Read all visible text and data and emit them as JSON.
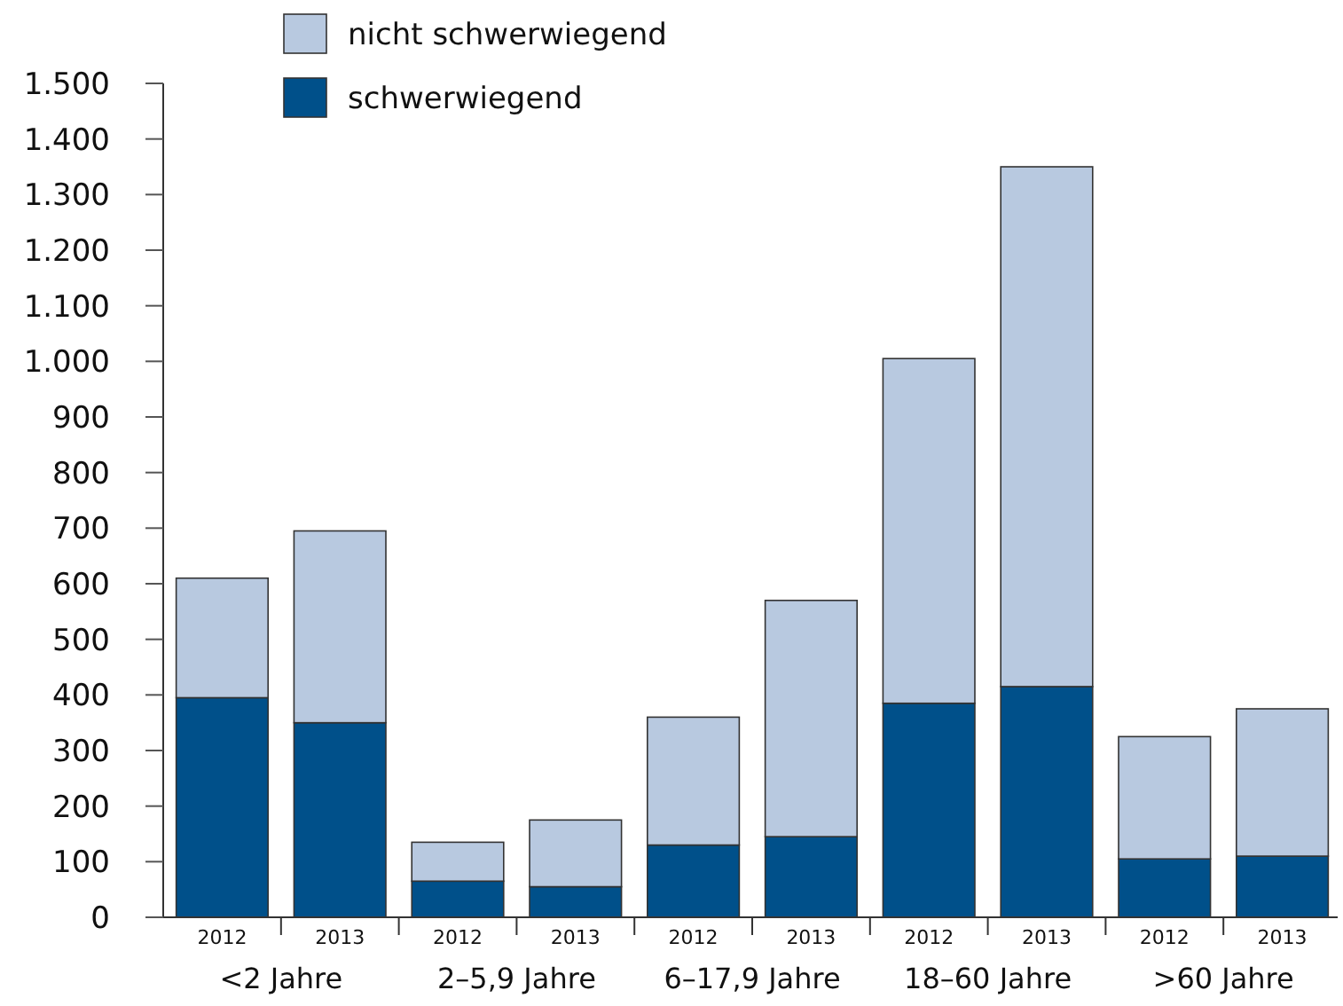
{
  "chart_data": {
    "type": "bar",
    "stacked": true,
    "legend": "top",
    "categories": [
      "2012",
      "2013",
      "2012",
      "2013",
      "2012",
      "2013",
      "2012",
      "2013",
      "2012",
      "2013"
    ],
    "series": [
      {
        "name": "schwerwiegend",
        "color": "#00508a",
        "values": [
          395,
          350,
          65,
          55,
          130,
          145,
          385,
          415,
          105,
          110
        ]
      },
      {
        "name": "nicht schwerwiegend",
        "color": "#b8c9e0",
        "values": [
          215,
          345,
          70,
          120,
          230,
          425,
          620,
          935,
          220,
          265
        ]
      }
    ],
    "ylim": [
      0,
      1500
    ],
    "yticks": [
      0,
      100,
      200,
      300,
      400,
      500,
      600,
      700,
      800,
      900,
      {
        "value": 1000,
        "label": "1.000"
      },
      {
        "value": 1100,
        "label": "1.100"
      },
      {
        "value": 1200,
        "label": "1.200"
      },
      {
        "value": 1300,
        "label": "1.300"
      },
      {
        "value": 1400,
        "label": "1.400"
      },
      {
        "value": 1500,
        "label": "1.500"
      }
    ],
    "annotations": [
      "<2 Jahre",
      "2–5,9 Jahre",
      "6–17,9 Jahre",
      "18–60 Jahre",
      ">60 Jahre"
    ]
  }
}
